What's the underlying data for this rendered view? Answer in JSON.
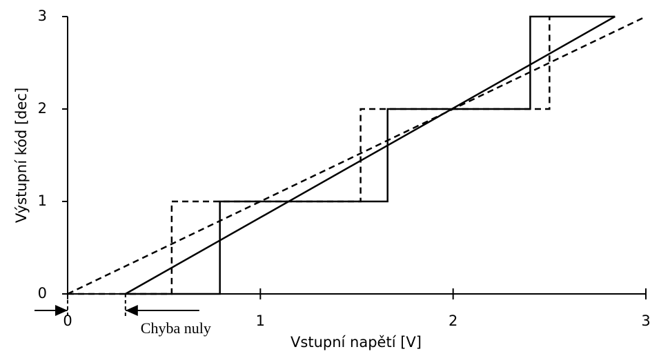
{
  "chart_data": {
    "type": "line",
    "xlabel": "Vstupní napětí [V]",
    "ylabel": "Výstupní kód [dec]",
    "xlim": [
      0,
      3
    ],
    "ylim": [
      0,
      3
    ],
    "xticks": [
      0,
      1,
      2,
      3
    ],
    "yticks": [
      0,
      1,
      2,
      3
    ],
    "grid": false,
    "series": [
      {
        "color": "#000000",
        "style": "dashed",
        "x": [
          0,
          0.54,
          0.54,
          1.52,
          1.52,
          2.5,
          2.5
        ],
        "values": [
          0,
          0,
          1,
          1,
          2,
          2,
          3
        ]
      },
      {
        "color": "#000000",
        "style": "dashed",
        "x": [
          0,
          3
        ],
        "values": [
          0,
          3
        ]
      },
      {
        "color": "#000000",
        "style": "solid",
        "x": [
          0.3,
          0.79,
          0.79,
          1.66,
          1.66,
          2.4,
          2.4,
          2.84
        ],
        "values": [
          0,
          0,
          1,
          1,
          2,
          2,
          3,
          3
        ]
      },
      {
        "color": "#000000",
        "style": "solid",
        "x": [
          0.3,
          2.84
        ],
        "values": [
          0,
          3
        ]
      }
    ],
    "annotations": [
      {
        "text": "Chyba nuly",
        "x": [
          0,
          0.3
        ]
      }
    ]
  }
}
